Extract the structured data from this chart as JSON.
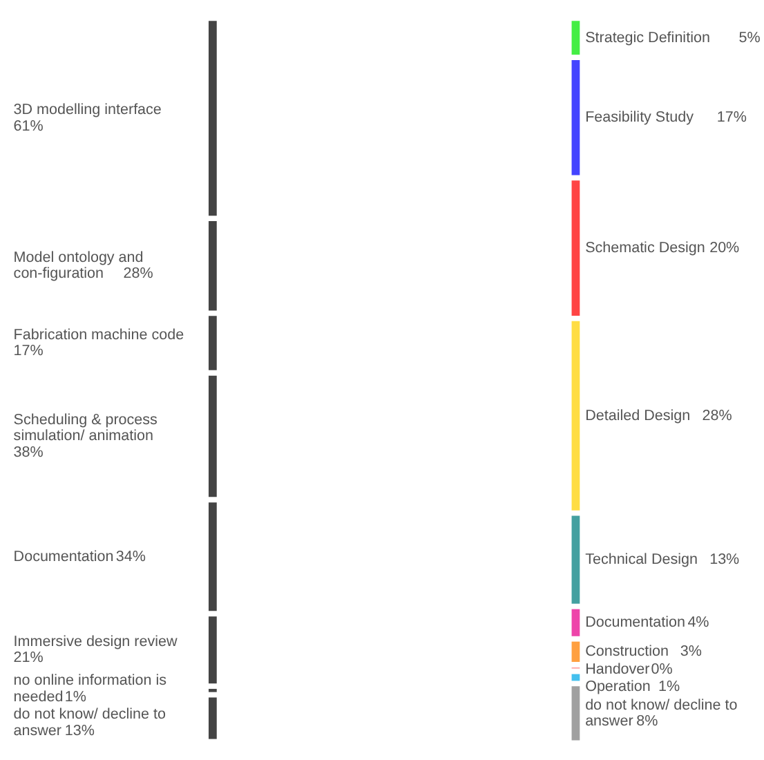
{
  "chart_data": [
    {
      "type": "other",
      "categories": [
        "3D modelling interface",
        "Model ontology and con-figuration",
        "Fabrication machine code",
        "Scheduling & process simulation/ animation",
        "Documentation",
        "Immersive design review",
        "no online information is needed",
        "do not know/ decline to answer"
      ],
      "values": [
        61,
        28,
        17,
        38,
        34,
        21,
        1,
        13
      ],
      "value_labels": [
        "61%",
        "28%",
        "17%",
        "38%",
        "34%",
        "21%",
        "1%",
        "13%"
      ],
      "colors": [
        "#444444",
        "#444444",
        "#444444",
        "#444444",
        "#444444",
        "#444444",
        "#444444",
        "#444444"
      ]
    },
    {
      "type": "other",
      "categories": [
        "Strategic Definition",
        "Feasibility Study",
        "Schematic Design",
        "Detailed Design",
        "Technical Design",
        "Documentation",
        "Construction",
        "Handover",
        "Operation",
        "do not know/ decline to answer"
      ],
      "values": [
        5,
        17,
        20,
        28,
        13,
        4,
        3,
        0,
        1,
        8
      ],
      "value_labels": [
        "5%",
        "17%",
        "20%",
        "28%",
        "13%",
        "4%",
        "3%",
        "0%",
        "1%",
        "8%"
      ],
      "colors": [
        "#44ee44",
        "#4444ff",
        "#ff4444",
        "#ffdd44",
        "#44a0a0",
        "#ee44aa",
        "#ffa040",
        "#ffaaaa",
        "#44c0ee",
        "#a0a0a0"
      ]
    }
  ]
}
